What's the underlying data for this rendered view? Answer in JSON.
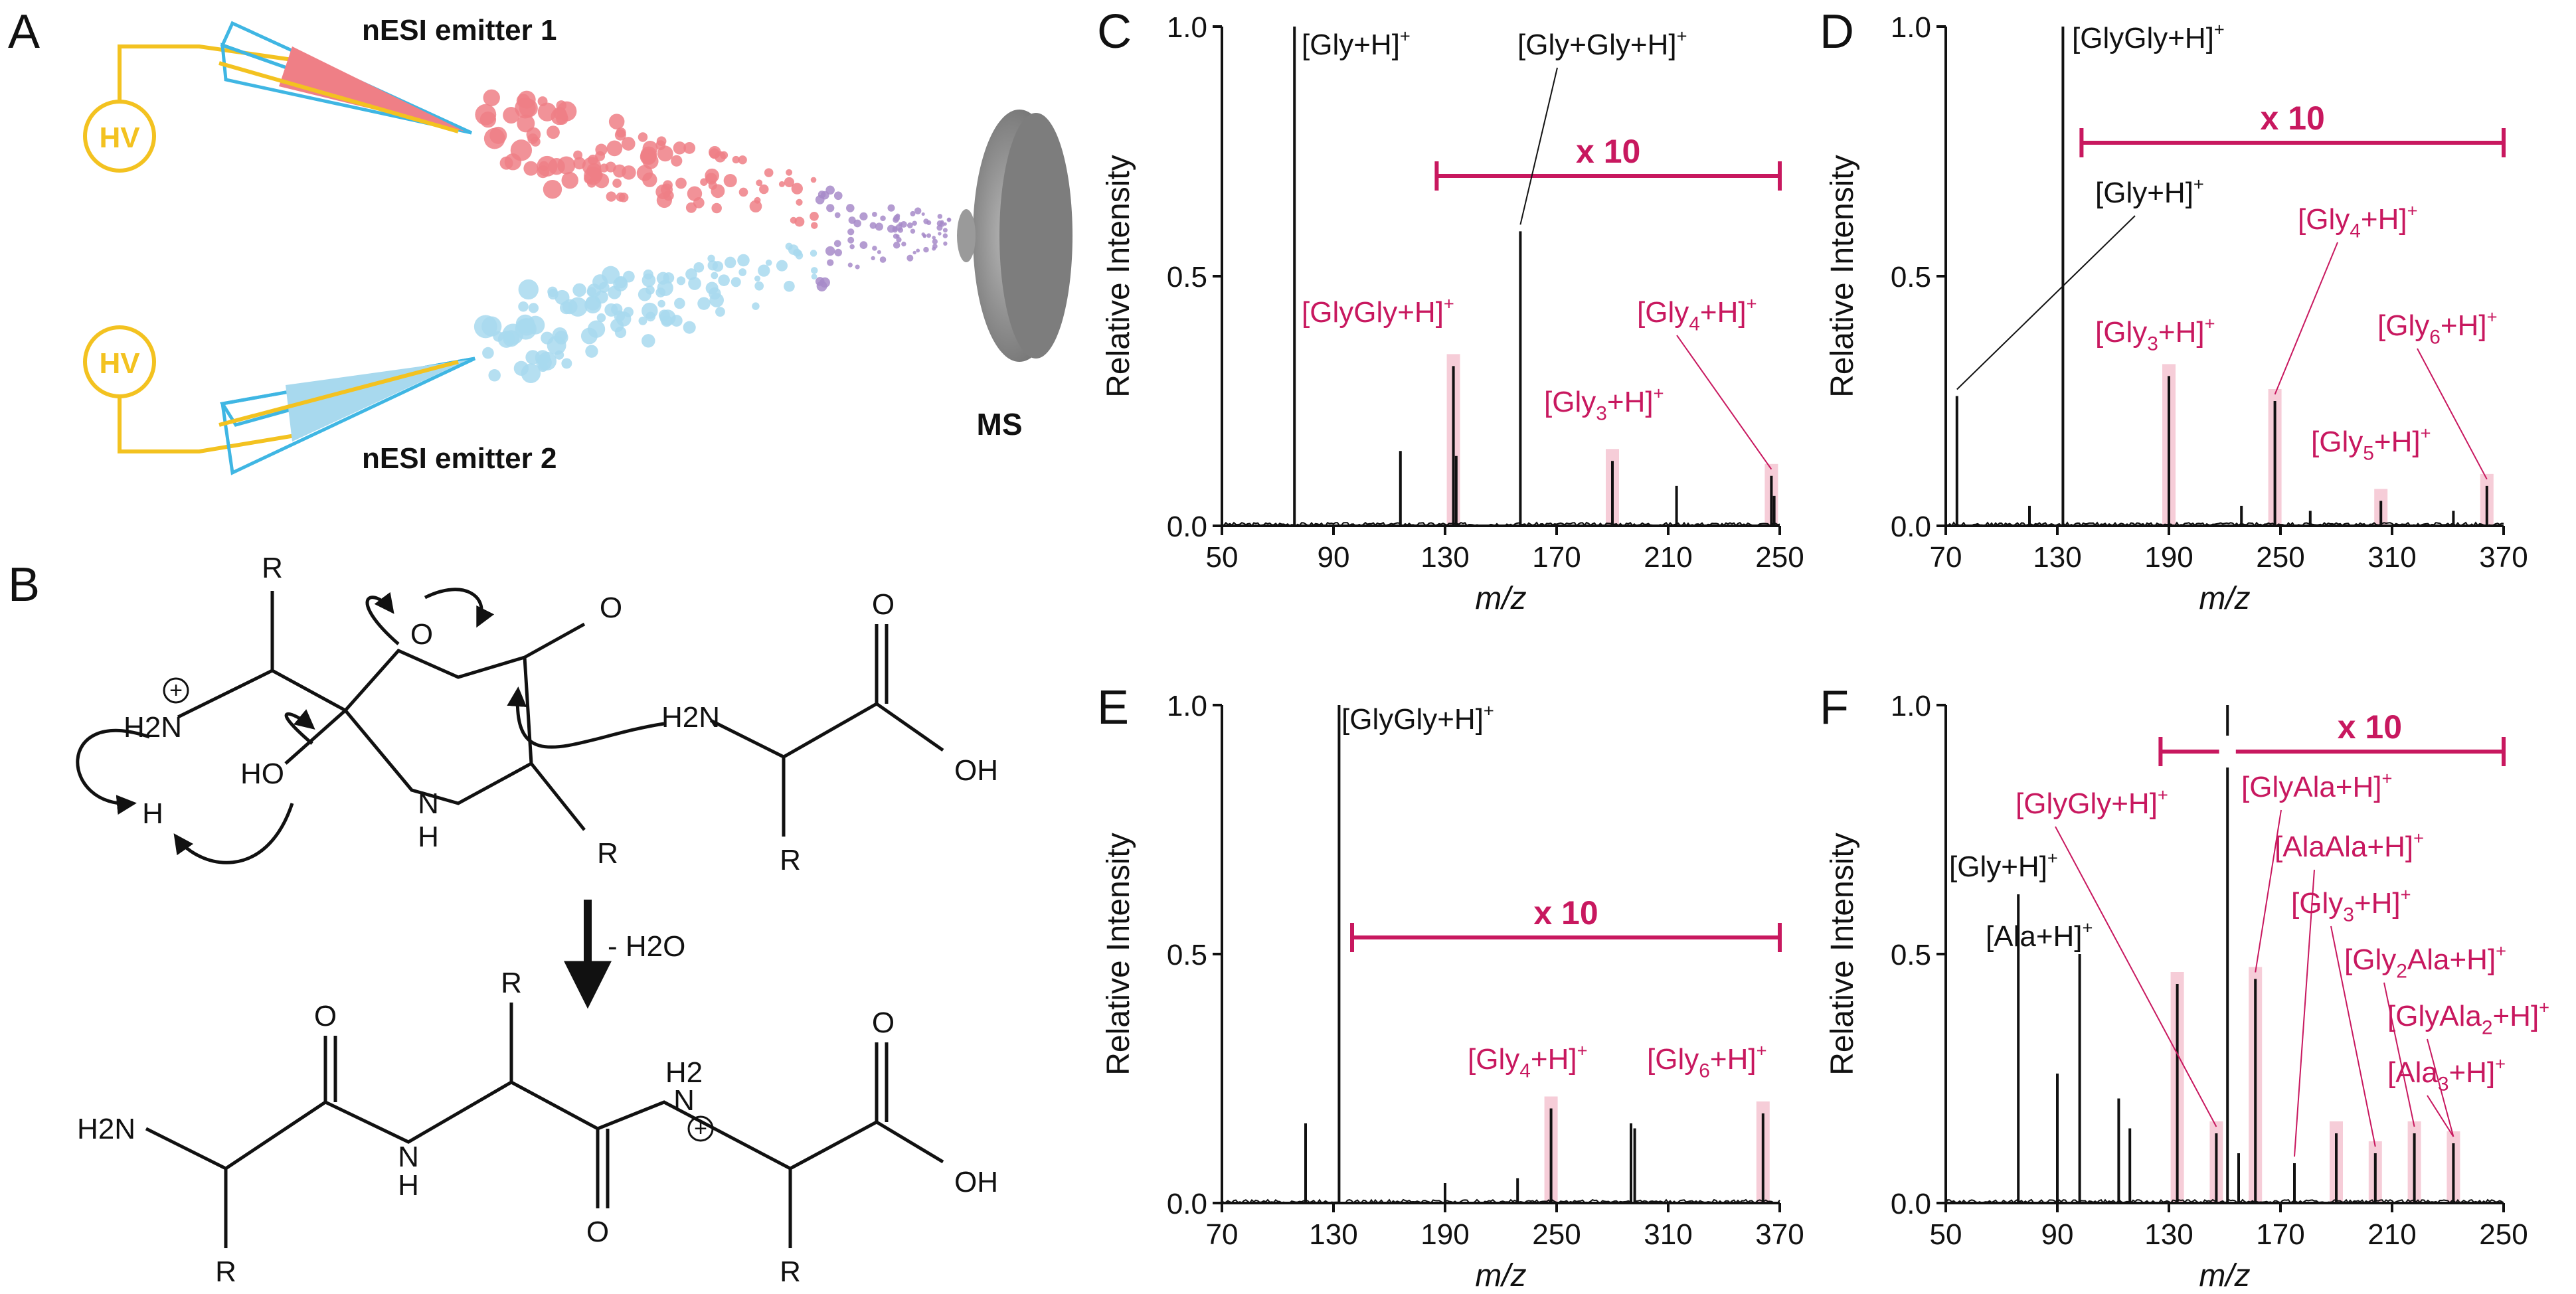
{
  "panel_letters": {
    "a": "A",
    "b": "B",
    "c": "C",
    "d": "D",
    "e": "E",
    "f": "F"
  },
  "schematic": {
    "hv_label": "HV",
    "emitter1_label": "nESI emitter 1",
    "emitter2_label": "nESI emitter 2",
    "ms_label": "MS",
    "colors": {
      "emitter1": "#ef7f86",
      "emitter2": "#a8d9ee",
      "mixed": "#a78bc9",
      "wire": "#f3c220",
      "capillary": "#3fb6e3",
      "ms": "#8a8a8a"
    }
  },
  "mechanism": {
    "labels": [
      "R",
      "O",
      "O",
      "H2N",
      "HO",
      "H",
      "N",
      "H",
      "R",
      "H2N",
      "O",
      "OH",
      "R",
      "O",
      "R",
      "H2",
      "N",
      "O",
      "H2N",
      "N",
      "H",
      "O",
      "O",
      "OH",
      "R",
      "R"
    ],
    "arrow_label": "- H2O",
    "charge_symbol": "+"
  },
  "colors": {
    "annotation": "#c8185f",
    "highlight": "#f6cdd8",
    "trace": "#111111",
    "axis": "#111111"
  },
  "chart_data": [
    {
      "type": "line",
      "panel": "C",
      "xlabel": "m/z",
      "ylabel": "Relative Intensity",
      "xlim": [
        50,
        250
      ],
      "ylim": [
        0,
        1
      ],
      "xticks": [
        "50",
        "90",
        "130",
        "170",
        "210",
        "250"
      ],
      "yticks": [
        "0.0",
        "0.5",
        "1.0"
      ],
      "zoom_label": "x 10",
      "zoom_range": [
        127,
        250
      ],
      "peaks": [
        [
          76,
          1.0
        ],
        [
          114,
          0.15
        ],
        [
          133,
          0.32
        ],
        [
          134,
          0.14
        ],
        [
          157,
          0.59
        ],
        [
          190,
          0.13
        ],
        [
          213,
          0.08
        ],
        [
          247,
          0.1
        ],
        [
          248,
          0.06
        ]
      ],
      "highlights": [
        133,
        190,
        247
      ],
      "annotations": [
        {
          "text": "[Gly+H]",
          "sup": "+",
          "color": "black"
        },
        {
          "text": "[Gly+Gly+H]",
          "sup": "+",
          "color": "black"
        },
        {
          "text": "[GlyGly+H]",
          "sup": "+",
          "color": "magenta"
        },
        {
          "text": "[Gly",
          "sub": "3",
          "tail": "+H]",
          "sup": "+",
          "color": "magenta"
        },
        {
          "text": "[Gly",
          "sub": "4",
          "tail": "+H]",
          "sup": "+",
          "color": "magenta"
        }
      ]
    },
    {
      "type": "line",
      "panel": "D",
      "xlabel": "m/z",
      "ylabel": "Relative Intensity",
      "xlim": [
        70,
        370
      ],
      "ylim": [
        0,
        1
      ],
      "xticks": [
        "70",
        "130",
        "190",
        "250",
        "310",
        "370"
      ],
      "yticks": [
        "0.0",
        "0.5",
        "1.0"
      ],
      "zoom_label": "x 10",
      "zoom_range": [
        143,
        370
      ],
      "peaks": [
        [
          76,
          0.26
        ],
        [
          115,
          0.04
        ],
        [
          133,
          1.0
        ],
        [
          190,
          0.3
        ],
        [
          229,
          0.04
        ],
        [
          247,
          0.25
        ],
        [
          266,
          0.03
        ],
        [
          304,
          0.05
        ],
        [
          343,
          0.03
        ],
        [
          361,
          0.08
        ]
      ],
      "highlights": [
        190,
        247,
        304,
        361
      ],
      "annotations": [
        {
          "text": "[GlyGly+H]",
          "sup": "+",
          "color": "black"
        },
        {
          "text": "[Gly+H]",
          "sup": "+",
          "color": "black"
        },
        {
          "text": "[Gly",
          "sub": "4",
          "tail": "+H]",
          "sup": "+",
          "color": "magenta"
        },
        {
          "text": "[Gly",
          "sub": "3",
          "tail": "+H]",
          "sup": "+",
          "color": "magenta"
        },
        {
          "text": "[Gly",
          "sub": "6",
          "tail": "+H]",
          "sup": "+",
          "color": "magenta"
        },
        {
          "text": "[Gly",
          "sub": "5",
          "tail": "+H]",
          "sup": "+",
          "color": "magenta"
        }
      ]
    },
    {
      "type": "line",
      "panel": "E",
      "xlabel": "m/z",
      "ylabel": "Relative Intensity",
      "xlim": [
        70,
        370
      ],
      "ylim": [
        0,
        1
      ],
      "xticks": [
        "70",
        "130",
        "190",
        "250",
        "310",
        "370"
      ],
      "yticks": [
        "0.0",
        "0.5",
        "1.0"
      ],
      "zoom_label": "x 10",
      "zoom_range": [
        140,
        370
      ],
      "peaks": [
        [
          115,
          0.16
        ],
        [
          133,
          1.0
        ],
        [
          190,
          0.04
        ],
        [
          229,
          0.05
        ],
        [
          247,
          0.19
        ],
        [
          290,
          0.16
        ],
        [
          292,
          0.15
        ],
        [
          361,
          0.18
        ]
      ],
      "highlights": [
        247,
        361
      ],
      "annotations": [
        {
          "text": "[GlyGly+H]",
          "sup": "+",
          "color": "black"
        },
        {
          "text": "[Gly",
          "sub": "4",
          "tail": "+H]",
          "sup": "+",
          "color": "magenta"
        },
        {
          "text": "[Gly",
          "sub": "6",
          "tail": "+H]",
          "sup": "+",
          "color": "magenta"
        }
      ]
    },
    {
      "type": "line",
      "panel": "F",
      "xlabel": "m/z",
      "ylabel": "Relative Intensity",
      "xlim": [
        50,
        250
      ],
      "ylim": [
        0,
        1
      ],
      "xticks": [
        "50",
        "90",
        "130",
        "170",
        "210",
        "250"
      ],
      "yticks": [
        "0.0",
        "0.5",
        "1.0"
      ],
      "zoom_label": "x 10",
      "zoom_range": [
        127,
        250
      ],
      "peaks": [
        [
          76,
          0.62
        ],
        [
          90,
          0.26
        ],
        [
          98,
          0.5
        ],
        [
          112,
          0.21
        ],
        [
          116,
          0.15
        ],
        [
          133,
          0.44
        ],
        [
          147,
          0.14
        ],
        [
          151,
          1.0
        ],
        [
          155,
          0.1
        ],
        [
          161,
          0.45
        ],
        [
          175,
          0.08
        ],
        [
          190,
          0.14
        ],
        [
          204,
          0.1
        ],
        [
          218,
          0.14
        ],
        [
          232,
          0.12
        ]
      ],
      "highlights": [
        133,
        147,
        161,
        190,
        204,
        218,
        232
      ],
      "annotations": [
        {
          "text": "[Gly+H]",
          "sup": "+",
          "color": "black"
        },
        {
          "text": "[Ala+H]",
          "sup": "+",
          "color": "black"
        },
        {
          "text": "[GlyGly+H]",
          "sup": "+",
          "color": "magenta"
        },
        {
          "text": "[GlyAla+H]",
          "sup": "+",
          "color": "magenta"
        },
        {
          "text": "[AlaAla+H]",
          "sup": "+",
          "color": "magenta"
        },
        {
          "text": "[Gly",
          "sub": "3",
          "tail": "+H]",
          "sup": "+",
          "color": "magenta"
        },
        {
          "text": "[Gly",
          "sub": "2",
          "tail": "Ala+H]",
          "sup": "+",
          "color": "magenta"
        },
        {
          "text": "[GlyAla",
          "sub": "2",
          "tail": "+H]",
          "sup": "+",
          "color": "magenta"
        },
        {
          "text": "[Ala",
          "sub": "3",
          "tail": "+H]",
          "sup": "+",
          "color": "magenta"
        }
      ]
    }
  ]
}
